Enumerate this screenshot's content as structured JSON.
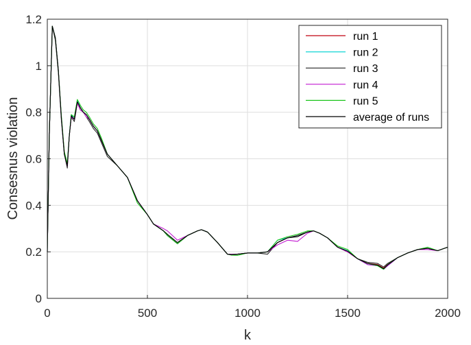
{
  "chart_data": {
    "type": "line",
    "xlabel": "k",
    "ylabel": "Consesnus violation",
    "xlim": [
      0,
      2000
    ],
    "ylim": [
      0,
      1.2
    ],
    "xticks": [
      "0",
      "500",
      "1000",
      "1500",
      "2000"
    ],
    "yticks": [
      "0",
      "0.2",
      "0.4",
      "0.6",
      "0.8",
      "1",
      "1.2"
    ],
    "grid": true,
    "legend_position": "top-right",
    "x": [
      0,
      10,
      25,
      40,
      55,
      70,
      85,
      100,
      110,
      120,
      135,
      150,
      165,
      180,
      195,
      210,
      230,
      250,
      270,
      300,
      350,
      400,
      450,
      500,
      530,
      580,
      600,
      650,
      700,
      750,
      770,
      800,
      850,
      900,
      920,
      950,
      1000,
      1050,
      1100,
      1150,
      1200,
      1250,
      1300,
      1330,
      1360,
      1400,
      1450,
      1500,
      1550,
      1600,
      1650,
      1680,
      1700,
      1750,
      1800,
      1850,
      1900,
      1950,
      2000
    ],
    "series": [
      {
        "name": "run 1",
        "color": "#c0000e",
        "values": [
          0.2,
          0.7,
          1.17,
          1.12,
          0.98,
          0.78,
          0.63,
          0.57,
          0.7,
          0.78,
          0.77,
          0.84,
          0.82,
          0.8,
          0.79,
          0.77,
          0.74,
          0.72,
          0.68,
          0.62,
          0.57,
          0.52,
          0.42,
          0.36,
          0.32,
          0.29,
          0.27,
          0.235,
          0.27,
          0.29,
          0.295,
          0.285,
          0.24,
          0.19,
          0.188,
          0.19,
          0.195,
          0.195,
          0.2,
          0.24,
          0.26,
          0.27,
          0.285,
          0.29,
          0.28,
          0.26,
          0.22,
          0.2,
          0.17,
          0.15,
          0.145,
          0.13,
          0.145,
          0.175,
          0.195,
          0.21,
          0.215,
          0.205,
          0.22
        ]
      },
      {
        "name": "run 2",
        "color": "#11d6d6",
        "values": [
          0.2,
          0.7,
          1.17,
          1.12,
          0.98,
          0.78,
          0.62,
          0.58,
          0.7,
          0.79,
          0.77,
          0.85,
          0.82,
          0.8,
          0.79,
          0.77,
          0.74,
          0.72,
          0.68,
          0.62,
          0.57,
          0.52,
          0.42,
          0.36,
          0.32,
          0.29,
          0.27,
          0.235,
          0.27,
          0.29,
          0.295,
          0.285,
          0.24,
          0.19,
          0.188,
          0.19,
          0.195,
          0.195,
          0.2,
          0.25,
          0.26,
          0.27,
          0.285,
          0.29,
          0.28,
          0.26,
          0.22,
          0.205,
          0.17,
          0.145,
          0.14,
          0.125,
          0.14,
          0.175,
          0.195,
          0.21,
          0.215,
          0.205,
          0.22
        ]
      },
      {
        "name": "run 3",
        "color": "#222222",
        "values": [
          0.2,
          0.7,
          1.17,
          1.11,
          0.97,
          0.77,
          0.62,
          0.56,
          0.7,
          0.78,
          0.76,
          0.84,
          0.81,
          0.8,
          0.78,
          0.76,
          0.73,
          0.71,
          0.67,
          0.61,
          0.57,
          0.52,
          0.42,
          0.36,
          0.32,
          0.29,
          0.27,
          0.235,
          0.27,
          0.29,
          0.295,
          0.285,
          0.24,
          0.19,
          0.186,
          0.19,
          0.195,
          0.195,
          0.19,
          0.24,
          0.26,
          0.27,
          0.285,
          0.29,
          0.28,
          0.26,
          0.22,
          0.2,
          0.17,
          0.155,
          0.15,
          0.135,
          0.15,
          0.175,
          0.195,
          0.21,
          0.215,
          0.205,
          0.22
        ]
      },
      {
        "name": "run 4",
        "color": "#c219d1",
        "values": [
          0.2,
          0.7,
          1.17,
          1.12,
          0.98,
          0.78,
          0.62,
          0.57,
          0.7,
          0.78,
          0.77,
          0.84,
          0.81,
          0.8,
          0.78,
          0.77,
          0.74,
          0.72,
          0.68,
          0.62,
          0.57,
          0.52,
          0.42,
          0.36,
          0.32,
          0.3,
          0.29,
          0.25,
          0.27,
          0.29,
          0.295,
          0.285,
          0.24,
          0.19,
          0.19,
          0.19,
          0.195,
          0.195,
          0.2,
          0.23,
          0.25,
          0.245,
          0.28,
          0.29,
          0.28,
          0.26,
          0.22,
          0.2,
          0.17,
          0.145,
          0.14,
          0.125,
          0.14,
          0.175,
          0.195,
          0.21,
          0.21,
          0.205,
          0.22
        ]
      },
      {
        "name": "run 5",
        "color": "#19c419",
        "values": [
          0.2,
          0.7,
          1.17,
          1.12,
          0.98,
          0.79,
          0.63,
          0.58,
          0.7,
          0.79,
          0.78,
          0.855,
          0.83,
          0.81,
          0.8,
          0.78,
          0.75,
          0.73,
          0.69,
          0.62,
          0.57,
          0.52,
          0.41,
          0.36,
          0.32,
          0.29,
          0.27,
          0.235,
          0.27,
          0.29,
          0.295,
          0.285,
          0.24,
          0.19,
          0.186,
          0.185,
          0.195,
          0.195,
          0.2,
          0.25,
          0.265,
          0.275,
          0.29,
          0.29,
          0.28,
          0.26,
          0.225,
          0.21,
          0.17,
          0.15,
          0.14,
          0.125,
          0.145,
          0.175,
          0.195,
          0.21,
          0.22,
          0.205,
          0.22
        ]
      },
      {
        "name": "average of runs",
        "color": "#000000",
        "values": [
          0.2,
          0.7,
          1.17,
          1.12,
          0.98,
          0.78,
          0.62,
          0.57,
          0.7,
          0.785,
          0.77,
          0.845,
          0.82,
          0.8,
          0.79,
          0.77,
          0.74,
          0.72,
          0.68,
          0.62,
          0.57,
          0.52,
          0.42,
          0.36,
          0.32,
          0.29,
          0.275,
          0.24,
          0.27,
          0.29,
          0.295,
          0.285,
          0.24,
          0.19,
          0.188,
          0.19,
          0.195,
          0.195,
          0.2,
          0.24,
          0.26,
          0.265,
          0.285,
          0.29,
          0.28,
          0.26,
          0.22,
          0.203,
          0.17,
          0.15,
          0.143,
          0.128,
          0.144,
          0.175,
          0.195,
          0.21,
          0.215,
          0.205,
          0.22
        ]
      }
    ]
  }
}
